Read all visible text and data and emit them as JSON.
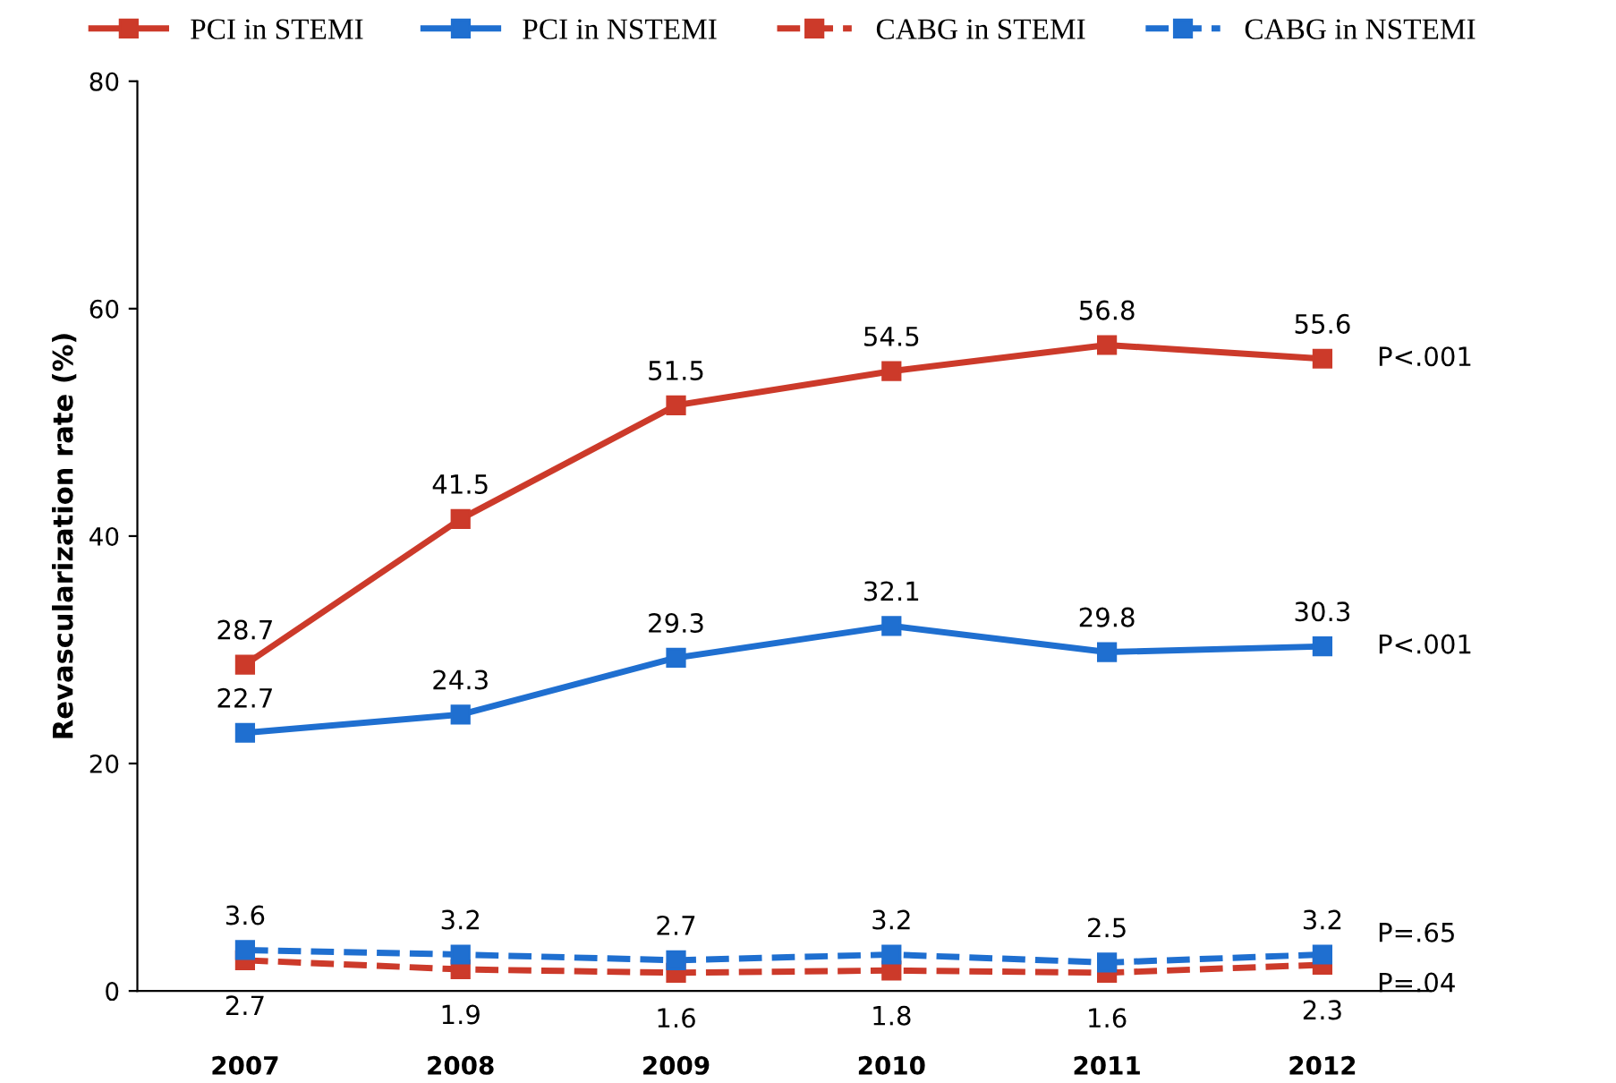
{
  "chart_data": {
    "type": "line",
    "ylabel": "Revascularization rate (%)",
    "categories": [
      "2007",
      "2008",
      "2009",
      "2010",
      "2011",
      "2012"
    ],
    "series": [
      {
        "name": "PCI in STEMI",
        "color": "#cc3a2a",
        "line_style": "solid",
        "values": [
          28.7,
          41.5,
          51.5,
          54.5,
          56.8,
          55.6
        ]
      },
      {
        "name": "PCI in NSTEMI",
        "color": "#1f6fd0",
        "line_style": "solid",
        "values": [
          22.7,
          24.3,
          29.3,
          32.1,
          29.8,
          30.3
        ]
      },
      {
        "name": "CABG in STEMI",
        "color": "#cc3a2a",
        "line_style": "dashed",
        "values": [
          2.7,
          1.9,
          1.6,
          1.8,
          1.6,
          2.3
        ]
      },
      {
        "name": "CABG in NSTEMI",
        "color": "#1f6fd0",
        "line_style": "dashed",
        "values": [
          3.6,
          3.2,
          2.7,
          3.2,
          2.5,
          3.2
        ]
      }
    ],
    "ylim": [
      0,
      80
    ],
    "yticks": [
      0,
      20,
      40,
      60,
      80
    ],
    "grid": false,
    "legend": "top",
    "marker": "square",
    "data_labels": true,
    "annotations": [
      {
        "text": "P<.001",
        "x": "2012",
        "y": 55.6
      },
      {
        "text": "P<.001",
        "x": "2012",
        "y": 30.3
      },
      {
        "text": "P=.65",
        "x": "2012",
        "y": 3.2
      },
      {
        "text": "P=.04",
        "x": "2012",
        "y": 2.3
      }
    ]
  }
}
